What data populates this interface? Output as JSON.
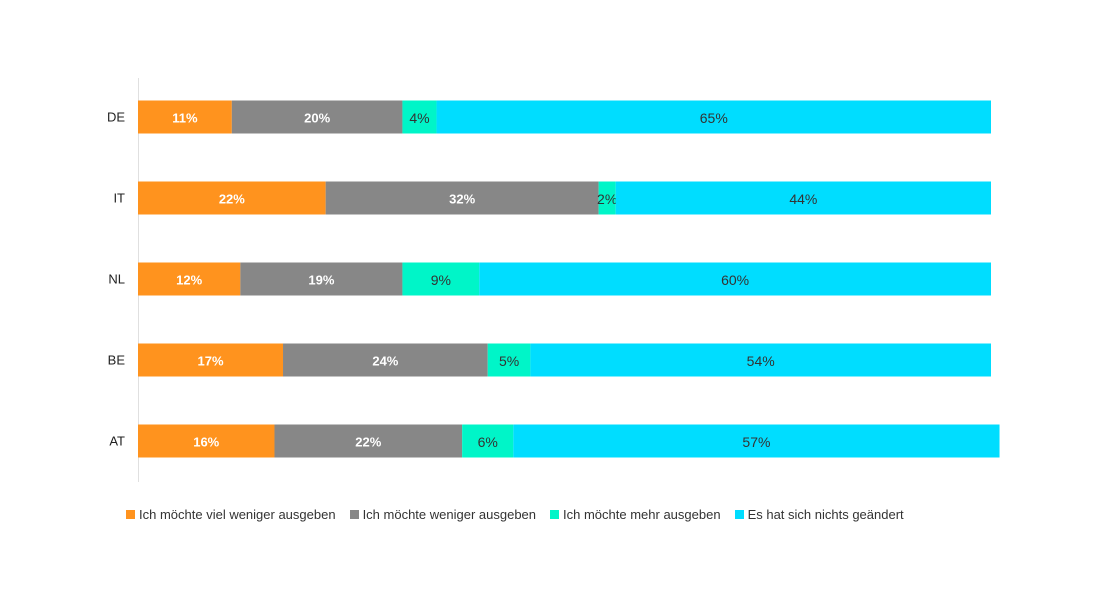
{
  "chart_data": {
    "type": "bar",
    "orientation": "horizontal",
    "stacked": true,
    "title": "",
    "xlabel": "",
    "ylabel": "",
    "xlim": [
      0,
      100
    ],
    "grid": false,
    "legend_position": "bottom-left",
    "categories": [
      "DE",
      "IT",
      "NL",
      "BE",
      "AT"
    ],
    "series": [
      {
        "name": "Ich möchte viel weniger ausgeben",
        "color": "#FF931E",
        "label_style": "light",
        "values": [
          11,
          22,
          12,
          17,
          16
        ],
        "labels": [
          "11%",
          "22%",
          "12%",
          "17%",
          "16%"
        ]
      },
      {
        "name": "Ich möchte weniger ausgeben",
        "color": "#878787",
        "label_style": "light",
        "values": [
          20,
          32,
          19,
          24,
          22
        ],
        "labels": [
          "20%",
          "32%",
          "19%",
          "24%",
          "22%"
        ]
      },
      {
        "name": "Ich möchte mehr ausgeben",
        "color": "#00F5C8",
        "label_style": "dark",
        "values": [
          4,
          2,
          9,
          5,
          6
        ],
        "labels": [
          "4%",
          "2%",
          "9%",
          "5%",
          "6%"
        ]
      },
      {
        "name": "Es hat sich nichts geändert",
        "color": "#00DDFF",
        "label_style": "dark",
        "values": [
          65,
          44,
          60,
          54,
          57
        ],
        "labels": [
          "65%",
          "44%",
          "60%",
          "54%",
          "57%"
        ]
      }
    ]
  }
}
